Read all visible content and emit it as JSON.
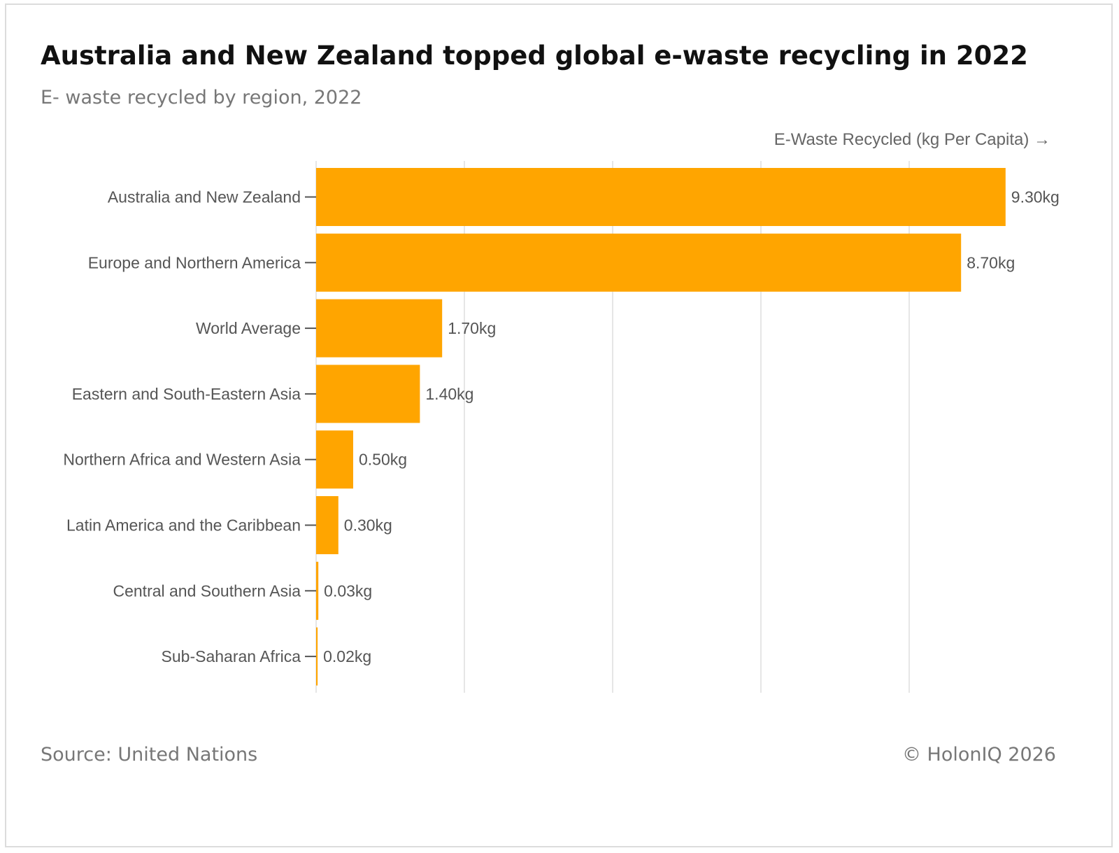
{
  "title": "Australia and New Zealand topped global e-waste recycling in 2022",
  "subtitle": "E- waste recycled by region, 2022",
  "footer": {
    "source": "Source: United Nations",
    "copyright": "© HolonIQ 2026"
  },
  "colors": {
    "bar": "#FFA500",
    "grid": "#e6e6e6",
    "axis": "#555555"
  },
  "chart_data": {
    "type": "bar",
    "orientation": "horizontal",
    "title": "Australia and New Zealand topped global e-waste recycling in 2022",
    "subtitle": "E- waste recycled by region, 2022",
    "xlabel": "E-Waste Recycled (kg Per Capita) →",
    "ylabel": "",
    "categories": [
      "Australia and New Zealand",
      "Europe and Northern America",
      "World Average",
      "Eastern and South-Eastern Asia",
      "Northern Africa and Western Asia",
      "Latin America and the Caribbean",
      "Central and Southern Asia",
      "Sub-Saharan Africa"
    ],
    "values": [
      9.3,
      8.7,
      1.7,
      1.4,
      0.5,
      0.3,
      0.03,
      0.02
    ],
    "value_labels": [
      "9.30kg",
      "8.70kg",
      "1.70kg",
      "1.40kg",
      "0.50kg",
      "0.30kg",
      "0.03kg",
      "0.02kg"
    ],
    "xlim": [
      0,
      10
    ],
    "grid": true,
    "grid_step": 2
  }
}
